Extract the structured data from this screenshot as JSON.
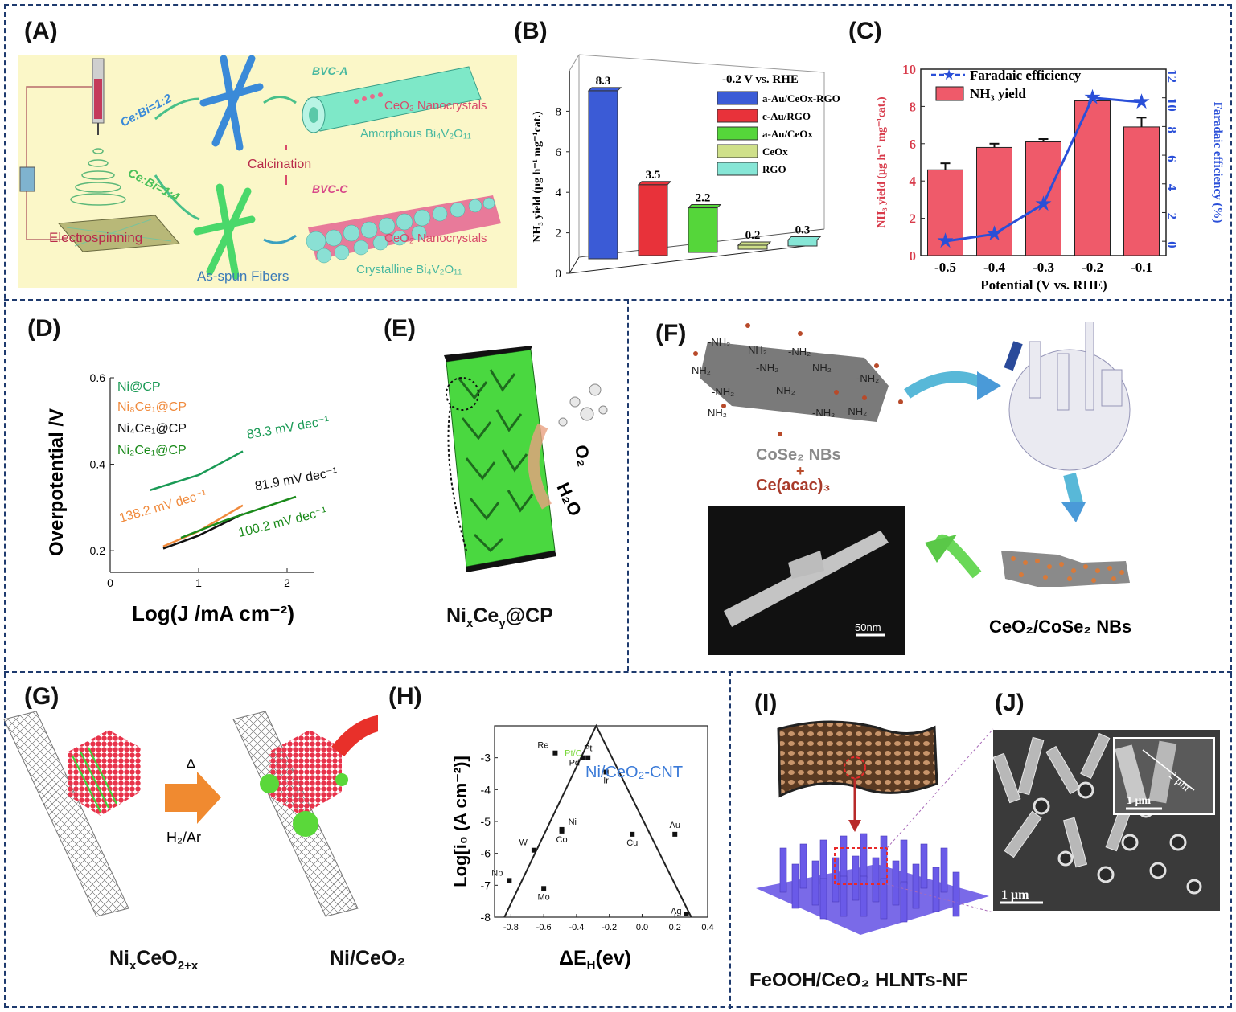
{
  "panels": {
    "A": {
      "label": "(A)",
      "ratio1": "Ce:Bi=1:2",
      "ratio2": "Ce:Bi=1:4",
      "electrospinning": "Electrospinning",
      "asspun": "As-spun Fibers",
      "calcination": "Calcination",
      "bvca": "BVC-A",
      "bvcc": "BVC-C",
      "ceo2_nano_1": "CeO₂ Nanocrystals",
      "ceo2_nano_2": "CeO₂ Nanocrystals",
      "amorphous": "Amorphous Bi₄V₂O₁₁",
      "crystalline": "Crystalline Bi₄V₂O₁₁"
    },
    "B": {
      "label": "(B)"
    },
    "C": {
      "label": "(C)"
    },
    "D": {
      "label": "(D)"
    },
    "E": {
      "label": "(E)",
      "caption": "NixCey@CP",
      "o2": "O₂",
      "h2o": "H₂O"
    },
    "F": {
      "label": "(F)",
      "nh2": "-NH₂",
      "cose2": "CoSe₂ NBs",
      "plus": "+",
      "ceacac": "Ce(acac)₃",
      "scale": "50nm",
      "product": "CeO₂/CoSe₂ NBs"
    },
    "G": {
      "label": "(G)",
      "delta": "Δ",
      "gas": "H₂/Ar",
      "left_caption": "NixCeO2+x",
      "right_caption": "Ni/CeO₂"
    },
    "H": {
      "label": "(H)"
    },
    "I": {
      "label": "(I)",
      "caption": "FeOOH/CeO₂ HLNTs-NF"
    },
    "J": {
      "label": "(J)",
      "scale_big": "1 μm",
      "scale_inset": "1 μm",
      "inset_dim": "2 μm"
    }
  },
  "chart_data": [
    {
      "id": "B",
      "type": "bar",
      "ylabel": "NH₃ yield (μg h⁻¹ mg⁻¹cat.)",
      "ylim": [
        0,
        10
      ],
      "yticks": [
        0,
        2,
        4,
        6,
        8
      ],
      "legend_title": "-0.2 V vs. RHE",
      "series": [
        {
          "name": "a-Au/CeOx-RGO",
          "value": 8.3,
          "label": "8.3",
          "color": "#3b5bd6"
        },
        {
          "name": "c-Au/RGO",
          "value": 3.5,
          "label": "3.5",
          "color": "#e8323a"
        },
        {
          "name": "a-Au/CeOx",
          "value": 2.2,
          "label": "2.2",
          "color": "#55d63a"
        },
        {
          "name": "CeOx",
          "value": 0.2,
          "label": "0.2",
          "color": "#cfe08a"
        },
        {
          "name": "RGO",
          "value": 0.3,
          "label": "0.3",
          "color": "#86e6d6"
        }
      ]
    },
    {
      "id": "C",
      "type": "bar",
      "xlabel": "Potential (V vs. RHE)",
      "ylabel": "NH₃ yield (μg h⁻¹ mg⁻¹cat.)",
      "y2label": "Faradaic efficiency (%)",
      "categories": [
        "-0.5",
        "-0.4",
        "-0.3",
        "-0.2",
        "-0.1"
      ],
      "ylim": [
        0,
        10
      ],
      "yticks": [
        0,
        2,
        4,
        6,
        8,
        10
      ],
      "y2lim": [
        -1,
        12
      ],
      "y2ticks": [
        0,
        2,
        4,
        6,
        8,
        10,
        12
      ],
      "series": [
        {
          "name": "NH₃ yield",
          "values": [
            4.6,
            5.8,
            6.1,
            8.3,
            6.9
          ],
          "errors": [
            0.35,
            0.2,
            0.15,
            0.2,
            0.5
          ],
          "color": "#e8323a"
        },
        {
          "name": "Faradaic efficiency",
          "values": [
            0.0,
            0.5,
            2.6,
            10.0,
            9.7
          ],
          "color": "#2a4fd8"
        }
      ]
    },
    {
      "id": "D",
      "type": "line",
      "xlabel": "Log(J /mA cm⁻²)",
      "ylabel": "Overpotential /V",
      "xlim": [
        0,
        2.3
      ],
      "ylim": [
        0.15,
        0.6
      ],
      "xticks": [
        "0",
        "1",
        "2"
      ],
      "yticks": [
        "0.2",
        "0.4",
        "0.6"
      ],
      "series": [
        {
          "name": "Ni@CP",
          "color": "#1a9a55",
          "slope_label": "83.3 mV dec⁻¹",
          "points": [
            [
              0.45,
              0.34
            ],
            [
              1.0,
              0.375
            ],
            [
              1.5,
              0.43
            ]
          ]
        },
        {
          "name": "Ni8Ce1@CP",
          "color": "#f08a3c",
          "slope_label": "138.2 mV dec⁻¹",
          "points": [
            [
              0.6,
              0.21
            ],
            [
              1.0,
              0.245
            ],
            [
              1.5,
              0.305
            ]
          ]
        },
        {
          "name": "Ni4Ce1@CP",
          "color": "#111111",
          "slope_label": "81.9 mV dec⁻¹",
          "points": [
            [
              0.6,
              0.205
            ],
            [
              1.0,
              0.235
            ],
            [
              1.5,
              0.285
            ]
          ]
        },
        {
          "name": "Ni2Ce1@CP",
          "color": "#1a8a1a",
          "slope_label": "100.2 mV dec⁻¹",
          "points": [
            [
              0.8,
              0.23
            ],
            [
              1.3,
              0.27
            ],
            [
              2.1,
              0.325
            ]
          ]
        }
      ]
    },
    {
      "id": "H",
      "type": "scatter",
      "xlabel": "ΔEH(ev)",
      "ylabel": "Log[i0 (A cm⁻²)]",
      "annotation": "Ni/CeO₂-CNT",
      "xlim": [
        -0.9,
        0.4
      ],
      "ylim": [
        -8,
        -2
      ],
      "xticks": [
        -0.8,
        -0.6,
        -0.4,
        -0.2,
        0.0,
        0.2,
        0.4
      ],
      "yticks": [
        -3,
        -4,
        -5,
        -6,
        -7,
        -8
      ],
      "points": [
        {
          "label": "Re",
          "x": -0.53,
          "y": -2.85
        },
        {
          "label": "Pt",
          "x": -0.33,
          "y": -3.0
        },
        {
          "label": "Pt/C",
          "x": -0.42,
          "y": -3.0,
          "color": "#7ad83a"
        },
        {
          "label": "Pd",
          "x": -0.36,
          "y": -3.0
        },
        {
          "label": "Ir",
          "x": -0.22,
          "y": -3.45
        },
        {
          "label": "Ni",
          "x": -0.49,
          "y": -5.25
        },
        {
          "label": "Co",
          "x": -0.49,
          "y": -5.3
        },
        {
          "label": "W",
          "x": -0.66,
          "y": -5.9
        },
        {
          "label": "Nb",
          "x": -0.81,
          "y": -6.85
        },
        {
          "label": "Mo",
          "x": -0.6,
          "y": -7.1
        },
        {
          "label": "Cu",
          "x": -0.06,
          "y": -5.4
        },
        {
          "label": "Au",
          "x": 0.2,
          "y": -5.4
        },
        {
          "label": "Ag",
          "x": 0.27,
          "y": -7.9
        }
      ]
    }
  ]
}
